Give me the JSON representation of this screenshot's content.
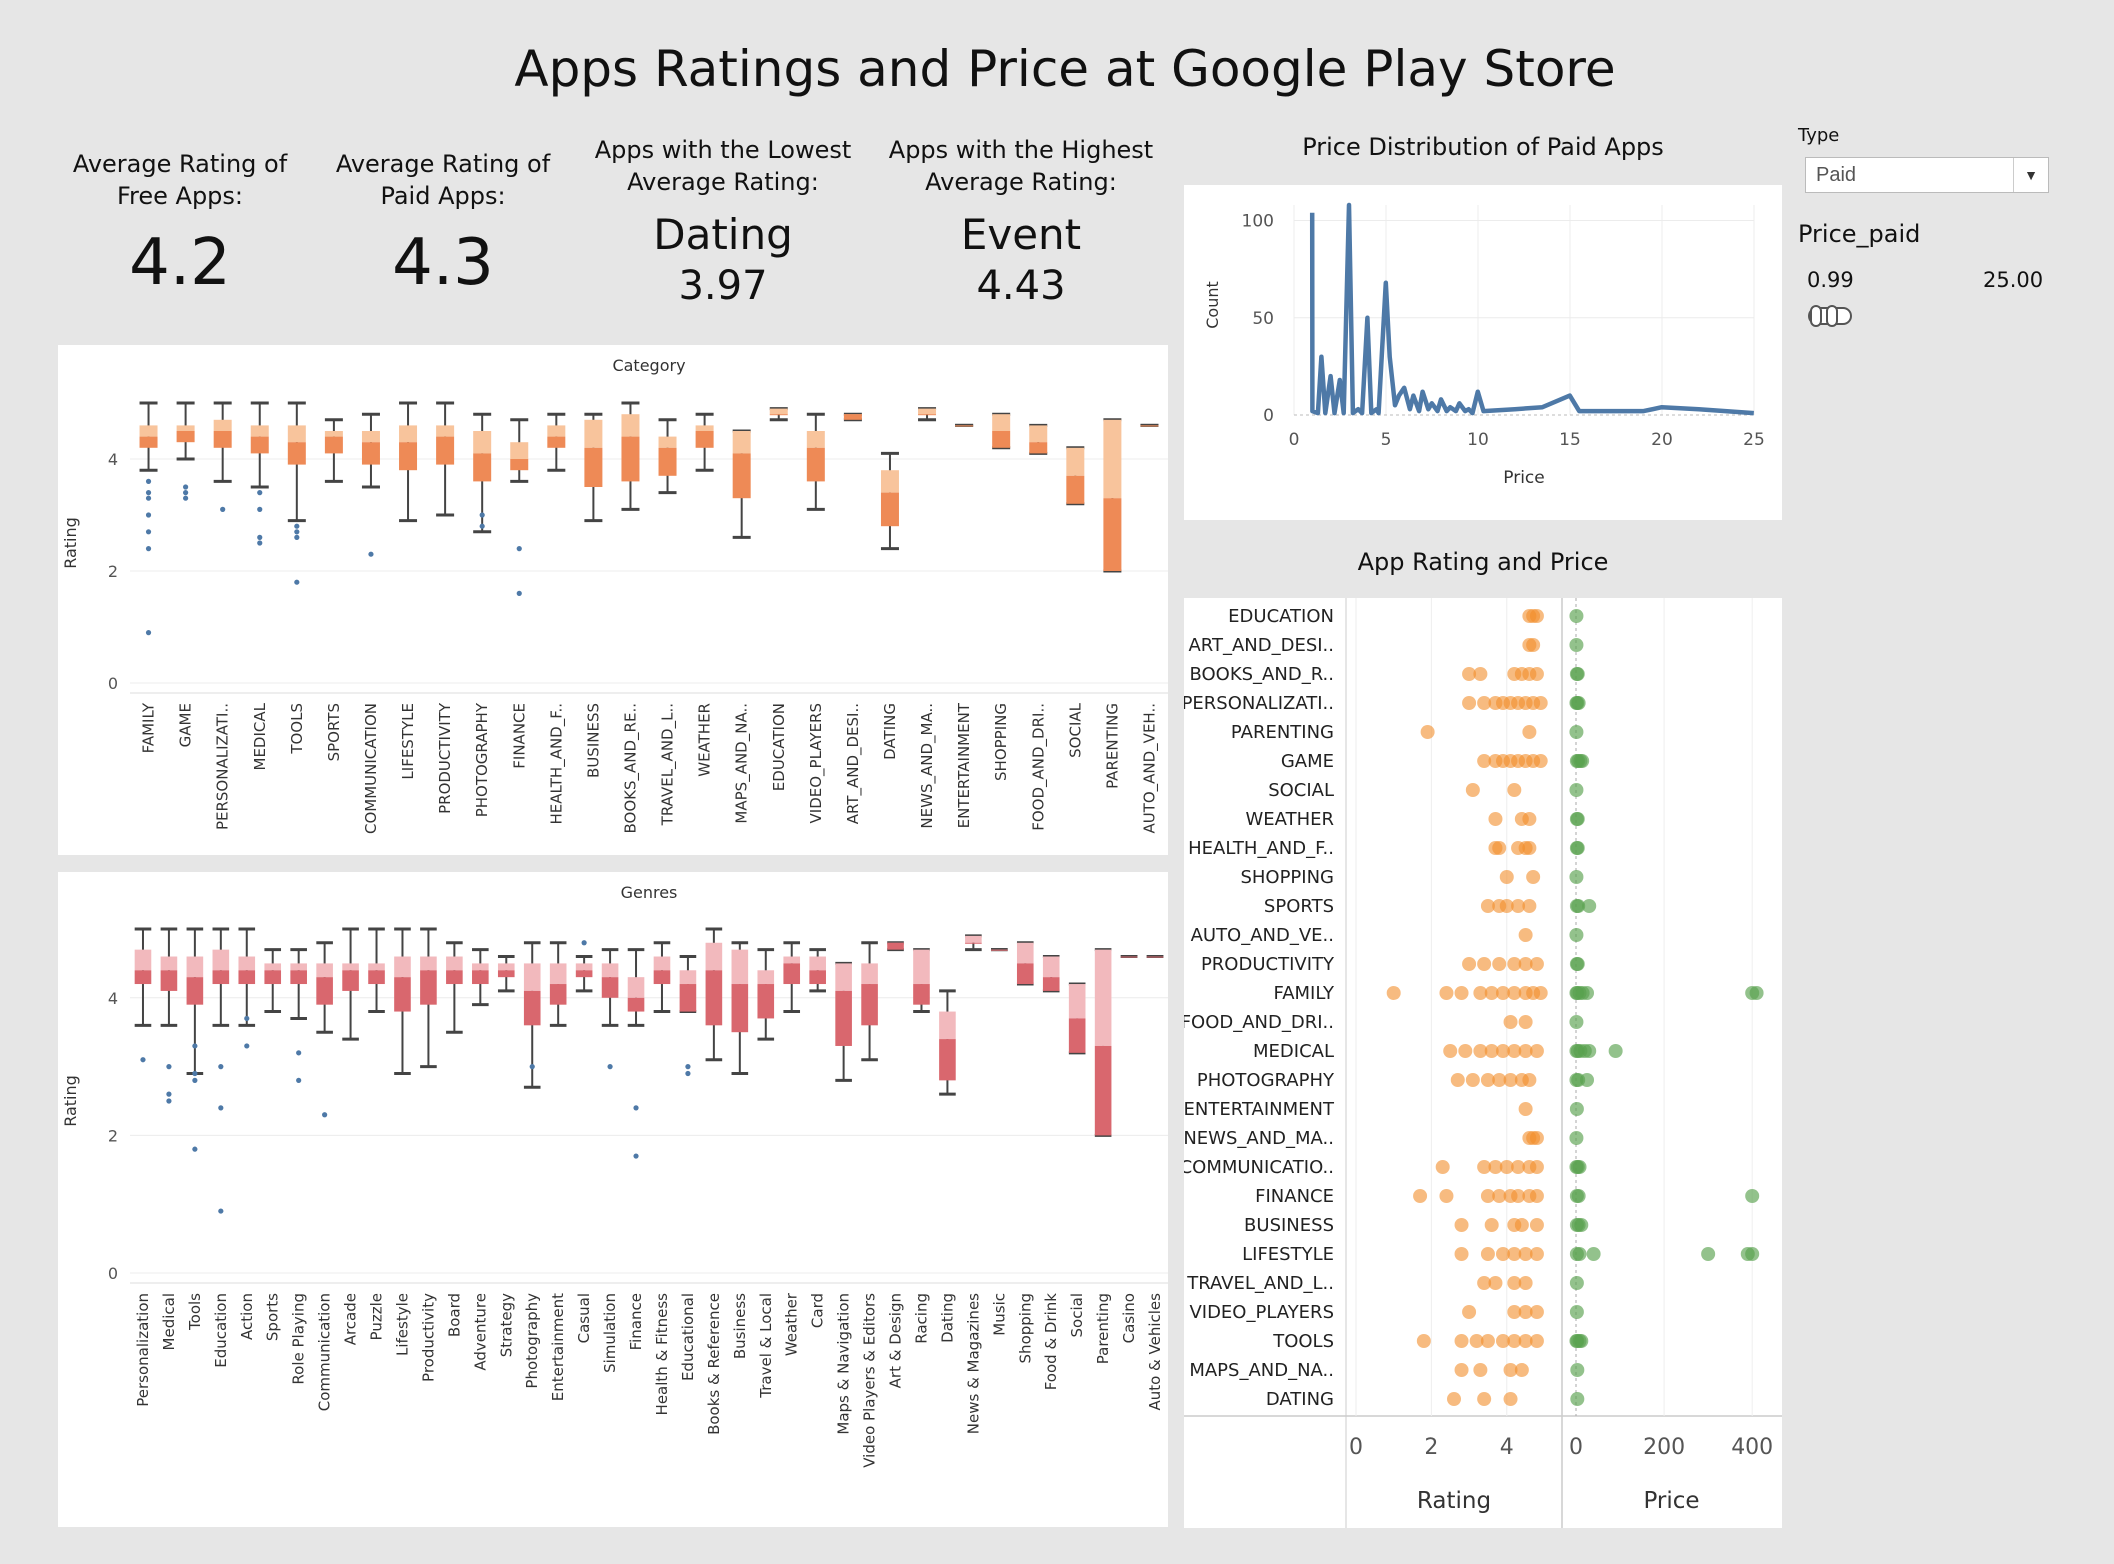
{
  "title": "Apps Ratings and Price at Google Play Store",
  "kpis": [
    {
      "label_1": "Average Rating of",
      "label_2": "Free Apps:",
      "value": "4.2"
    },
    {
      "label_1": "Average Rating of",
      "label_2": "Paid Apps:",
      "value": "4.3"
    },
    {
      "label_1": "Apps with the Lowest",
      "label_2": "Average Rating:",
      "category": "Dating",
      "value": "3.97"
    },
    {
      "label_1": "Apps with the Highest",
      "label_2": "Average Rating:",
      "category": "Event",
      "value": "4.43"
    }
  ],
  "filters": {
    "type_label": "Type",
    "type_value": "Paid",
    "price_label": "Price_paid",
    "price_min": "0.99",
    "price_max": "25.00"
  },
  "colors": {
    "orange_dark": "#ee8a56",
    "orange_light": "#f8c49c",
    "red_dark": "#d9676e",
    "red_light": "#f2b9bd",
    "blue": "#4e79a7",
    "green": "#59a14f",
    "orange_dot": "#f28e2b"
  },
  "chart_data": [
    {
      "type": "boxplot",
      "title": "Category",
      "ylabel": "Rating",
      "ylim": [
        0,
        5
      ],
      "yticks": [
        0,
        2,
        4
      ],
      "categories": [
        "FAMILY",
        "GAME",
        "PERSONALIZATI..",
        "MEDICAL",
        "TOOLS",
        "SPORTS",
        "COMMUNICATION",
        "LIFESTYLE",
        "PRODUCTIVITY",
        "PHOTOGRAPHY",
        "FINANCE",
        "HEALTH_AND_F..",
        "BUSINESS",
        "BOOKS_AND_RE..",
        "TRAVEL_AND_L..",
        "WEATHER",
        "MAPS_AND_NA..",
        "EDUCATION",
        "VIDEO_PLAYERS",
        "ART_AND_DESI..",
        "DATING",
        "NEWS_AND_MA..",
        "ENTERTAINMENT",
        "SHOPPING",
        "FOOD_AND_DRI..",
        "SOCIAL",
        "PARENTING",
        "AUTO_AND_VEH.."
      ],
      "boxes": [
        [
          3.8,
          4.2,
          4.4,
          4.6,
          5.0
        ],
        [
          4.0,
          4.3,
          4.5,
          4.6,
          5.0
        ],
        [
          3.6,
          4.2,
          4.5,
          4.7,
          5.0
        ],
        [
          3.5,
          4.1,
          4.4,
          4.6,
          5.0
        ],
        [
          2.9,
          3.9,
          4.3,
          4.6,
          5.0
        ],
        [
          3.6,
          4.1,
          4.4,
          4.5,
          4.7
        ],
        [
          3.5,
          3.9,
          4.3,
          4.5,
          4.8
        ],
        [
          2.9,
          3.8,
          4.3,
          4.6,
          5.0
        ],
        [
          3.0,
          3.9,
          4.4,
          4.6,
          5.0
        ],
        [
          2.7,
          3.6,
          4.1,
          4.5,
          4.8
        ],
        [
          3.6,
          3.8,
          4.0,
          4.3,
          4.7
        ],
        [
          3.8,
          4.2,
          4.4,
          4.6,
          4.8
        ],
        [
          2.9,
          3.5,
          4.2,
          4.7,
          4.8
        ],
        [
          3.1,
          3.6,
          4.4,
          4.8,
          5.0
        ],
        [
          3.4,
          3.7,
          4.2,
          4.4,
          4.7
        ],
        [
          3.8,
          4.2,
          4.5,
          4.6,
          4.8
        ],
        [
          2.6,
          3.3,
          4.1,
          4.5,
          4.5
        ],
        [
          4.7,
          4.8,
          4.8,
          4.9,
          4.9
        ],
        [
          3.1,
          3.6,
          4.2,
          4.5,
          4.8
        ],
        [
          4.7,
          4.7,
          4.8,
          4.8,
          4.8
        ],
        [
          2.4,
          2.8,
          3.4,
          3.8,
          4.1
        ],
        [
          4.7,
          4.8,
          4.8,
          4.9,
          4.9
        ],
        [
          4.6,
          4.6,
          4.6,
          4.6,
          4.6
        ],
        [
          4.2,
          4.2,
          4.5,
          4.8,
          4.8
        ],
        [
          4.1,
          4.1,
          4.3,
          4.6,
          4.6
        ],
        [
          3.2,
          3.2,
          3.7,
          4.2,
          4.2
        ],
        [
          2.0,
          2.0,
          3.3,
          4.7,
          4.7
        ],
        [
          4.6,
          4.6,
          4.6,
          4.6,
          4.6
        ]
      ],
      "outliers": [
        [
          0.9,
          2.4,
          2.7,
          3.0,
          3.3,
          3.4,
          3.6
        ],
        [
          3.3,
          3.4,
          3.5
        ],
        [
          3.1
        ],
        [
          2.5,
          2.6,
          3.1,
          3.4
        ],
        [
          1.8,
          2.6,
          2.7,
          2.8
        ],
        [],
        [
          2.3
        ],
        [],
        [],
        [
          2.8,
          3.0
        ],
        [
          1.6,
          2.4
        ],
        [],
        [],
        [],
        [],
        [],
        [],
        [],
        [],
        [],
        [],
        [],
        [],
        [],
        [],
        [],
        [],
        []
      ]
    },
    {
      "type": "boxplot",
      "title": "Genres",
      "ylabel": "Rating",
      "ylim": [
        0,
        5
      ],
      "yticks": [
        0,
        2,
        4
      ],
      "categories": [
        "Personalization",
        "Medical",
        "Tools",
        "Education",
        "Action",
        "Sports",
        "Role Playing",
        "Communication",
        "Arcade",
        "Puzzle",
        "Lifestyle",
        "Productivity",
        "Board",
        "Adventure",
        "Strategy",
        "Photography",
        "Entertainment",
        "Casual",
        "Simulation",
        "Finance",
        "Health & Fitness",
        "Educational",
        "Books & Reference",
        "Business",
        "Travel & Local",
        "Weather",
        "Card",
        "Maps & Navigation",
        "Video Players & Editors",
        "Art & Design",
        "Racing",
        "Dating",
        "News & Magazines",
        "Music",
        "Shopping",
        "Food & Drink",
        "Social",
        "Parenting",
        "Casino",
        "Auto & Vehicles"
      ],
      "boxes": [
        [
          3.6,
          4.2,
          4.4,
          4.7,
          5.0
        ],
        [
          3.6,
          4.1,
          4.4,
          4.6,
          5.0
        ],
        [
          2.9,
          3.9,
          4.3,
          4.6,
          5.0
        ],
        [
          3.6,
          4.2,
          4.4,
          4.7,
          5.0
        ],
        [
          3.6,
          4.2,
          4.4,
          4.6,
          5.0
        ],
        [
          3.8,
          4.2,
          4.4,
          4.5,
          4.7
        ],
        [
          3.7,
          4.2,
          4.4,
          4.5,
          4.7
        ],
        [
          3.5,
          3.9,
          4.3,
          4.5,
          4.8
        ],
        [
          3.4,
          4.1,
          4.4,
          4.5,
          5.0
        ],
        [
          3.8,
          4.2,
          4.4,
          4.5,
          5.0
        ],
        [
          2.9,
          3.8,
          4.3,
          4.6,
          5.0
        ],
        [
          3.0,
          3.9,
          4.4,
          4.6,
          5.0
        ],
        [
          3.5,
          4.2,
          4.4,
          4.6,
          4.8
        ],
        [
          3.9,
          4.2,
          4.4,
          4.5,
          4.7
        ],
        [
          4.1,
          4.3,
          4.4,
          4.5,
          4.6
        ],
        [
          2.7,
          3.6,
          4.1,
          4.5,
          4.8
        ],
        [
          3.6,
          3.9,
          4.2,
          4.5,
          4.8
        ],
        [
          4.1,
          4.3,
          4.4,
          4.5,
          4.6
        ],
        [
          3.6,
          4.0,
          4.3,
          4.5,
          4.7
        ],
        [
          3.6,
          3.8,
          4.0,
          4.3,
          4.7
        ],
        [
          3.8,
          4.2,
          4.4,
          4.6,
          4.8
        ],
        [
          3.8,
          3.8,
          4.2,
          4.4,
          4.6
        ],
        [
          3.1,
          3.6,
          4.4,
          4.8,
          5.0
        ],
        [
          2.9,
          3.5,
          4.2,
          4.7,
          4.8
        ],
        [
          3.4,
          3.7,
          4.2,
          4.4,
          4.7
        ],
        [
          3.8,
          4.2,
          4.5,
          4.6,
          4.8
        ],
        [
          4.1,
          4.2,
          4.4,
          4.6,
          4.7
        ],
        [
          2.8,
          3.3,
          4.1,
          4.5,
          4.5
        ],
        [
          3.1,
          3.6,
          4.2,
          4.5,
          4.8
        ],
        [
          4.7,
          4.7,
          4.8,
          4.8,
          4.8
        ],
        [
          3.8,
          3.9,
          4.2,
          4.7,
          4.7
        ],
        [
          2.6,
          2.8,
          3.4,
          3.8,
          4.1
        ],
        [
          4.7,
          4.8,
          4.8,
          4.9,
          4.9
        ],
        [
          4.7,
          4.7,
          4.7,
          4.7,
          4.7
        ],
        [
          4.2,
          4.2,
          4.5,
          4.8,
          4.8
        ],
        [
          4.1,
          4.1,
          4.3,
          4.6,
          4.6
        ],
        [
          3.2,
          3.2,
          3.7,
          4.2,
          4.2
        ],
        [
          2.0,
          2.0,
          3.3,
          4.7,
          4.7
        ],
        [
          4.6,
          4.6,
          4.6,
          4.6,
          4.6
        ],
        [
          4.6,
          4.6,
          4.6,
          4.6,
          4.6
        ]
      ],
      "outliers": [
        [
          3.1
        ],
        [
          2.5,
          2.6,
          3.0
        ],
        [
          1.8,
          2.8,
          2.9,
          3.3
        ],
        [
          0.9,
          2.4,
          3.0
        ],
        [
          3.3,
          3.7
        ],
        [],
        [
          2.8,
          3.2
        ],
        [
          2.3
        ],
        [],
        [],
        [],
        [],
        [],
        [],
        [],
        [
          3.0
        ],
        [],
        [
          4.8
        ],
        [
          3.0
        ],
        [
          1.7,
          2.4
        ],
        [],
        [
          2.9,
          3.0
        ],
        [],
        [],
        [],
        [],
        [],
        [],
        [],
        [],
        [],
        [],
        [],
        [],
        [],
        [],
        [],
        [],
        [],
        []
      ]
    },
    {
      "type": "line",
      "title": "Price Distribution of Paid Apps",
      "xlabel": "Price",
      "ylabel": "Count",
      "xlim": [
        0,
        25
      ],
      "ylim": [
        0,
        108
      ],
      "xticks": [
        0,
        5,
        10,
        15,
        20,
        25
      ],
      "yticks": [
        0,
        50,
        100
      ],
      "x": [
        0.99,
        1.0,
        1.3,
        1.49,
        1.7,
        1.99,
        2.2,
        2.49,
        2.7,
        2.99,
        3.2,
        3.49,
        3.7,
        3.99,
        4.2,
        4.49,
        4.6,
        4.99,
        5.2,
        5.49,
        5.7,
        5.99,
        6.3,
        6.49,
        6.8,
        6.99,
        7.3,
        7.49,
        7.8,
        7.99,
        8.3,
        8.49,
        8.8,
        8.99,
        9.3,
        9.49,
        9.7,
        9.99,
        10.3,
        12,
        13.5,
        14.99,
        15.5,
        17,
        19,
        19.99,
        22,
        24.99
      ],
      "y": [
        104,
        2,
        1,
        30,
        1,
        20,
        1,
        18,
        1,
        108,
        1,
        3,
        1,
        50,
        1,
        3,
        1,
        68,
        30,
        5,
        10,
        14,
        3,
        10,
        2,
        12,
        3,
        6,
        2,
        8,
        2,
        4,
        2,
        6,
        2,
        3,
        1,
        12,
        2,
        3,
        4,
        10,
        2,
        2,
        2,
        4,
        3,
        1
      ]
    },
    {
      "type": "scatter",
      "title": "App Rating and Price",
      "panels": [
        {
          "xlabel": "Rating",
          "xlim": [
            0,
            5.2
          ],
          "xticks": [
            0,
            2,
            4
          ]
        },
        {
          "xlabel": "Price",
          "xlim": [
            0,
            420
          ],
          "xticks": [
            0,
            200,
            400
          ]
        }
      ],
      "categories": [
        "EDUCATION",
        "ART_AND_DESI..",
        "BOOKS_AND_R..",
        "PERSONALIZATI..",
        "PARENTING",
        "GAME",
        "SOCIAL",
        "WEATHER",
        "HEALTH_AND_F..",
        "SHOPPING",
        "SPORTS",
        "AUTO_AND_VE..",
        "PRODUCTIVITY",
        "FAMILY",
        "FOOD_AND_DRI..",
        "MEDICAL",
        "PHOTOGRAPHY",
        "ENTERTAINMENT",
        "NEWS_AND_MA..",
        "COMMUNICATIO..",
        "FINANCE",
        "BUSINESS",
        "LIFESTYLE",
        "TRAVEL_AND_L..",
        "VIDEO_PLAYERS",
        "TOOLS",
        "MAPS_AND_NA..",
        "DATING"
      ],
      "ratings": [
        [
          4.6,
          4.7,
          4.8
        ],
        [
          4.6,
          4.7
        ],
        [
          3.0,
          3.3,
          4.2,
          4.4,
          4.6,
          4.8
        ],
        [
          3.0,
          3.4,
          3.7,
          3.9,
          4.1,
          4.3,
          4.5,
          4.7,
          4.9
        ],
        [
          1.9,
          4.6
        ],
        [
          3.4,
          3.7,
          3.9,
          4.1,
          4.3,
          4.5,
          4.7,
          4.9
        ],
        [
          3.1,
          4.2
        ],
        [
          3.7,
          4.4,
          4.6
        ],
        [
          3.7,
          3.8,
          4.3,
          4.5,
          4.6
        ],
        [
          4.0,
          4.7
        ],
        [
          3.5,
          3.8,
          4.0,
          4.3,
          4.6
        ],
        [
          4.5
        ],
        [
          3.0,
          3.4,
          3.8,
          4.2,
          4.5,
          4.8
        ],
        [
          1.0,
          2.4,
          2.8,
          3.3,
          3.6,
          3.9,
          4.2,
          4.5,
          4.7,
          4.9
        ],
        [
          4.1,
          4.5
        ],
        [
          2.5,
          2.9,
          3.3,
          3.6,
          3.9,
          4.2,
          4.5,
          4.8
        ],
        [
          2.7,
          3.1,
          3.5,
          3.8,
          4.1,
          4.4,
          4.6
        ],
        [
          4.5
        ],
        [
          4.6,
          4.7,
          4.8
        ],
        [
          2.3,
          3.4,
          3.7,
          4.0,
          4.3,
          4.6,
          4.8
        ],
        [
          1.7,
          2.4,
          3.5,
          3.8,
          4.1,
          4.3,
          4.6,
          4.8
        ],
        [
          2.8,
          3.6,
          4.2,
          4.4,
          4.8
        ],
        [
          2.8,
          3.5,
          3.9,
          4.2,
          4.5,
          4.8
        ],
        [
          3.4,
          3.7,
          4.2,
          4.5
        ],
        [
          3.0,
          4.2,
          4.5,
          4.8
        ],
        [
          1.8,
          2.8,
          3.2,
          3.5,
          3.9,
          4.2,
          4.5,
          4.8
        ],
        [
          2.8,
          3.3,
          4.1,
          4.4
        ],
        [
          2.6,
          3.4,
          4.1
        ]
      ],
      "prices": [
        [
          1
        ],
        [
          1
        ],
        [
          2,
          4
        ],
        [
          1,
          3,
          6
        ],
        [
          1
        ],
        [
          2,
          5,
          10,
          14
        ],
        [
          1
        ],
        [
          2,
          4
        ],
        [
          2,
          4
        ],
        [
          1
        ],
        [
          2,
          5,
          30
        ],
        [
          1
        ],
        [
          2,
          4
        ],
        [
          1,
          3,
          8,
          15,
          25,
          400,
          410
        ],
        [
          1
        ],
        [
          1,
          4,
          10,
          20,
          30,
          90
        ],
        [
          1,
          5,
          25
        ],
        [
          2
        ],
        [
          1
        ],
        [
          1,
          4,
          8
        ],
        [
          2,
          6,
          400
        ],
        [
          2,
          6,
          12
        ],
        [
          2,
          8,
          40,
          300,
          390,
          400
        ],
        [
          2
        ],
        [
          2
        ],
        [
          1,
          3,
          8,
          12
        ],
        [
          3
        ],
        [
          3
        ]
      ]
    }
  ]
}
